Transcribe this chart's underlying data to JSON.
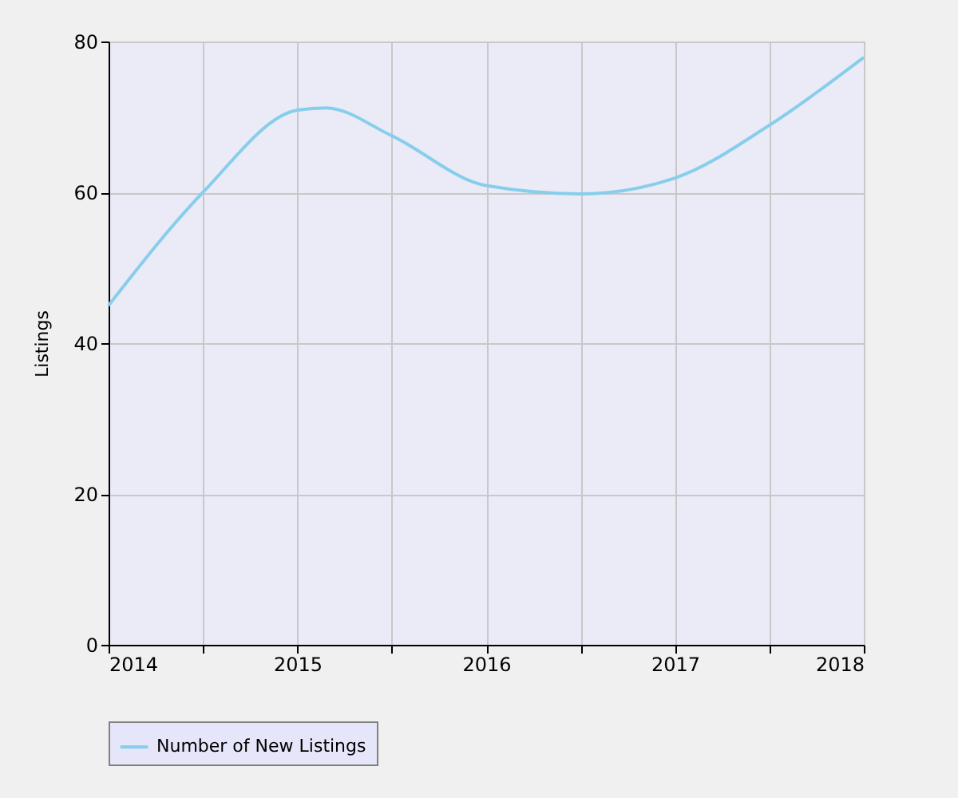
{
  "chart_data": {
    "type": "line",
    "ylabel": "Listings",
    "x": [
      2014,
      2014.5,
      2015,
      2015.15,
      2015.5,
      2016,
      2016.5,
      2017,
      2017.5,
      2018
    ],
    "series": [
      {
        "name": "Number of New Listings",
        "color": "#87ceeb",
        "values": [
          45,
          60,
          70.9,
          71.2,
          67.5,
          60.9,
          59.8,
          61.9,
          68.9,
          77.9
        ]
      }
    ],
    "xlim": [
      2014,
      2018
    ],
    "xticks": [
      2014,
      {
        "value": 2014.5,
        "label": null
      },
      2015,
      {
        "value": 2015.5,
        "label": null
      },
      2016,
      {
        "value": 2016.5,
        "label": null
      },
      2017,
      {
        "value": 2017.5,
        "label": null
      },
      2018
    ],
    "ylim": [
      0,
      80
    ],
    "yticks": [
      0,
      20,
      40,
      60,
      80
    ],
    "grid": true,
    "legend": "bottom",
    "marker": "none",
    "line_style": "solid"
  }
}
